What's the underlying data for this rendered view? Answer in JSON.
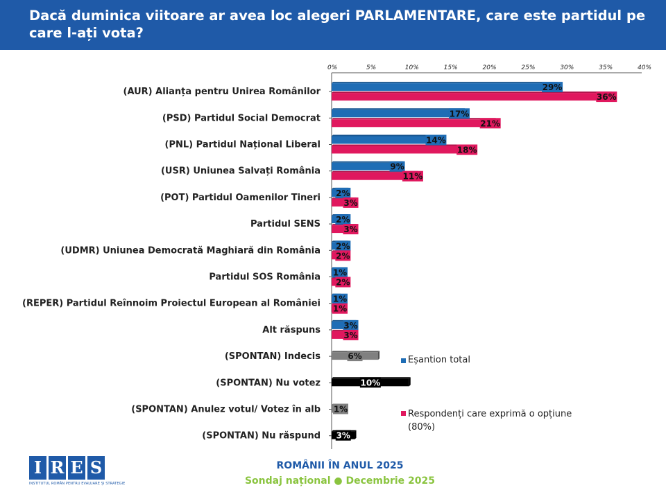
{
  "title": "Dacă duminica viitoare ar avea loc alegeri PARLAMENTARE, care este partidul pe care l-ați vota?",
  "footer": {
    "line1": "ROMÂNII ÎN ANUL 2025",
    "line2": "Sondaj național ● Decembrie 2025"
  },
  "logo": {
    "letters": [
      "I",
      "R",
      "E",
      "S"
    ],
    "subtitle": "INSTITUTUL ROMÂN PENTRU EVALUARE ȘI STRATEGIE"
  },
  "legend": {
    "total": "Eșantion total",
    "decided_line1": "Respondenți care exprimă o opțiune",
    "decided_line2": "(80%)"
  },
  "colors": {
    "header": "#1f5aa8",
    "total": "#1f6db5",
    "decided": "#e0185e",
    "indecis": "#808080",
    "spontan_dark": "#000000",
    "footer_green": "#8ac43f"
  },
  "chart_data": {
    "type": "bar",
    "orientation": "horizontal",
    "x_ticks": [
      "0%",
      "5%",
      "10%",
      "15%",
      "20%",
      "25%",
      "30%",
      "35%",
      "40%"
    ],
    "xlim": [
      0,
      40
    ],
    "rows": [
      {
        "label": "(AUR) Alianța pentru Unirea Românilor",
        "total": 29,
        "decided": 36
      },
      {
        "label": "(PSD) Partidul Social Democrat",
        "total": 17,
        "decided": 21
      },
      {
        "label": "(PNL) Partidul Național Liberal",
        "total": 14,
        "decided": 18
      },
      {
        "label": "(USR) Uniunea Salvați România",
        "total": 9,
        "decided": 11
      },
      {
        "label": "(POT) Partidul Oamenilor Tineri",
        "total": 2,
        "decided": 3
      },
      {
        "label": "Partidul SENS",
        "total": 2,
        "decided": 3
      },
      {
        "label": "(UDMR) Uniunea Democrată Maghiară din România",
        "total": 2,
        "decided": 2
      },
      {
        "label": "Partidul SOS România",
        "total": 1,
        "decided": 2
      },
      {
        "label": "(REPER) Partidul Reînnoim Proiectul European al României",
        "total": 1,
        "decided": 1
      },
      {
        "label": "Alt răspuns",
        "total": 3,
        "decided": 3
      },
      {
        "label": "(SPONTAN) Indecis",
        "total": 6,
        "color": "indecis"
      },
      {
        "label": "(SPONTAN) Nu votez",
        "total": 10,
        "color": "spontan_dark"
      },
      {
        "label": "(SPONTAN) Anulez votul/ Votez în alb",
        "total": 1,
        "color": "indecis"
      },
      {
        "label": "(SPONTAN) Nu răspund",
        "total": 3,
        "color": "spontan_dark"
      }
    ]
  }
}
